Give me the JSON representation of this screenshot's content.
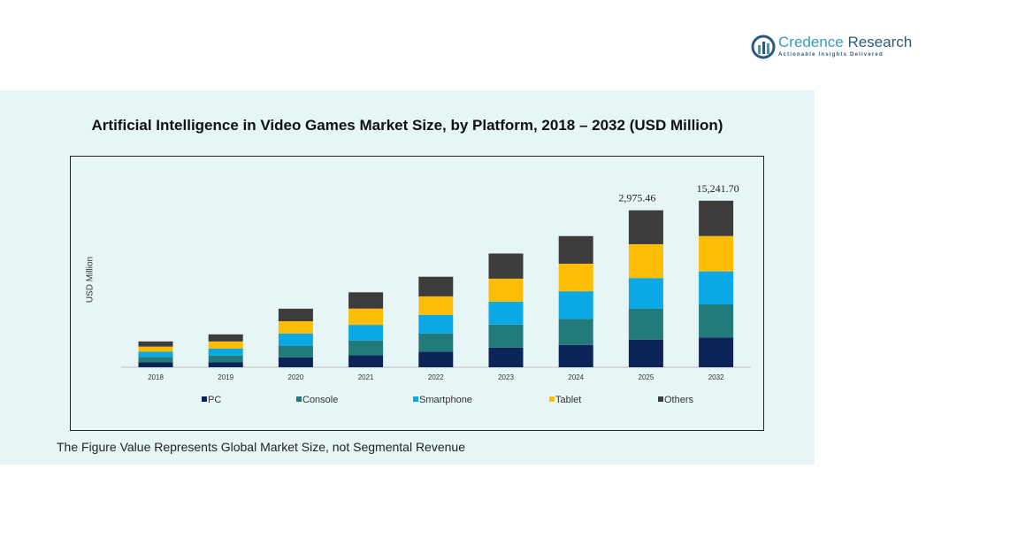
{
  "logo": {
    "name_first": "Credence",
    "name_second": "Research",
    "tagline": "Actionable Insights Delivered"
  },
  "footnote": "The Figure Value Represents Global Market Size, not Segmental Revenue",
  "colors": {
    "panel_bg": "#e6f5f5",
    "pc": "#0d2459",
    "console": "#237a7a",
    "smartphone": "#0aa9e6",
    "tablet": "#fcbd04",
    "others": "#3c3c3c"
  },
  "chart_data": {
    "type": "bar",
    "stacked": true,
    "title": "Artificial Intelligence  in Video Games Market Size, by Platform, 2018 – 2032 (USD Million)",
    "xlabel": "",
    "ylabel": "USD Million",
    "categories": [
      "2018",
      "2019",
      "2020",
      "2021",
      "2022",
      "2023",
      "2024",
      "2025",
      "2032"
    ],
    "series": [
      {
        "name": "PC",
        "color": "#0d2459",
        "values": [
          94,
          98,
          187,
          228,
          293,
          374,
          424,
          525,
          565
        ]
      },
      {
        "name": "Console",
        "color": "#237a7a",
        "values": [
          102,
          124,
          217,
          281,
          351,
          436,
          495,
          585,
          628
        ]
      },
      {
        "name": "Smartphone",
        "color": "#0aa9e6",
        "values": [
          98,
          134,
          238,
          296,
          351,
          436,
          524,
          584,
          628
        ]
      },
      {
        "name": "Tablet",
        "color": "#fcbd04",
        "values": [
          98,
          134,
          232,
          309,
          351,
          436,
          524,
          643,
          671
        ]
      },
      {
        "name": "Others",
        "color": "#3c3c3c",
        "values": [
          98,
          134,
          238,
          309,
          373,
          478,
          524,
          644,
          671
        ]
      }
    ],
    "data_labels": [
      {
        "category": "2025",
        "text": "2,975.46"
      },
      {
        "category": "2032",
        "text": "15,241.70"
      }
    ],
    "grid": false,
    "legend_position": "bottom"
  }
}
